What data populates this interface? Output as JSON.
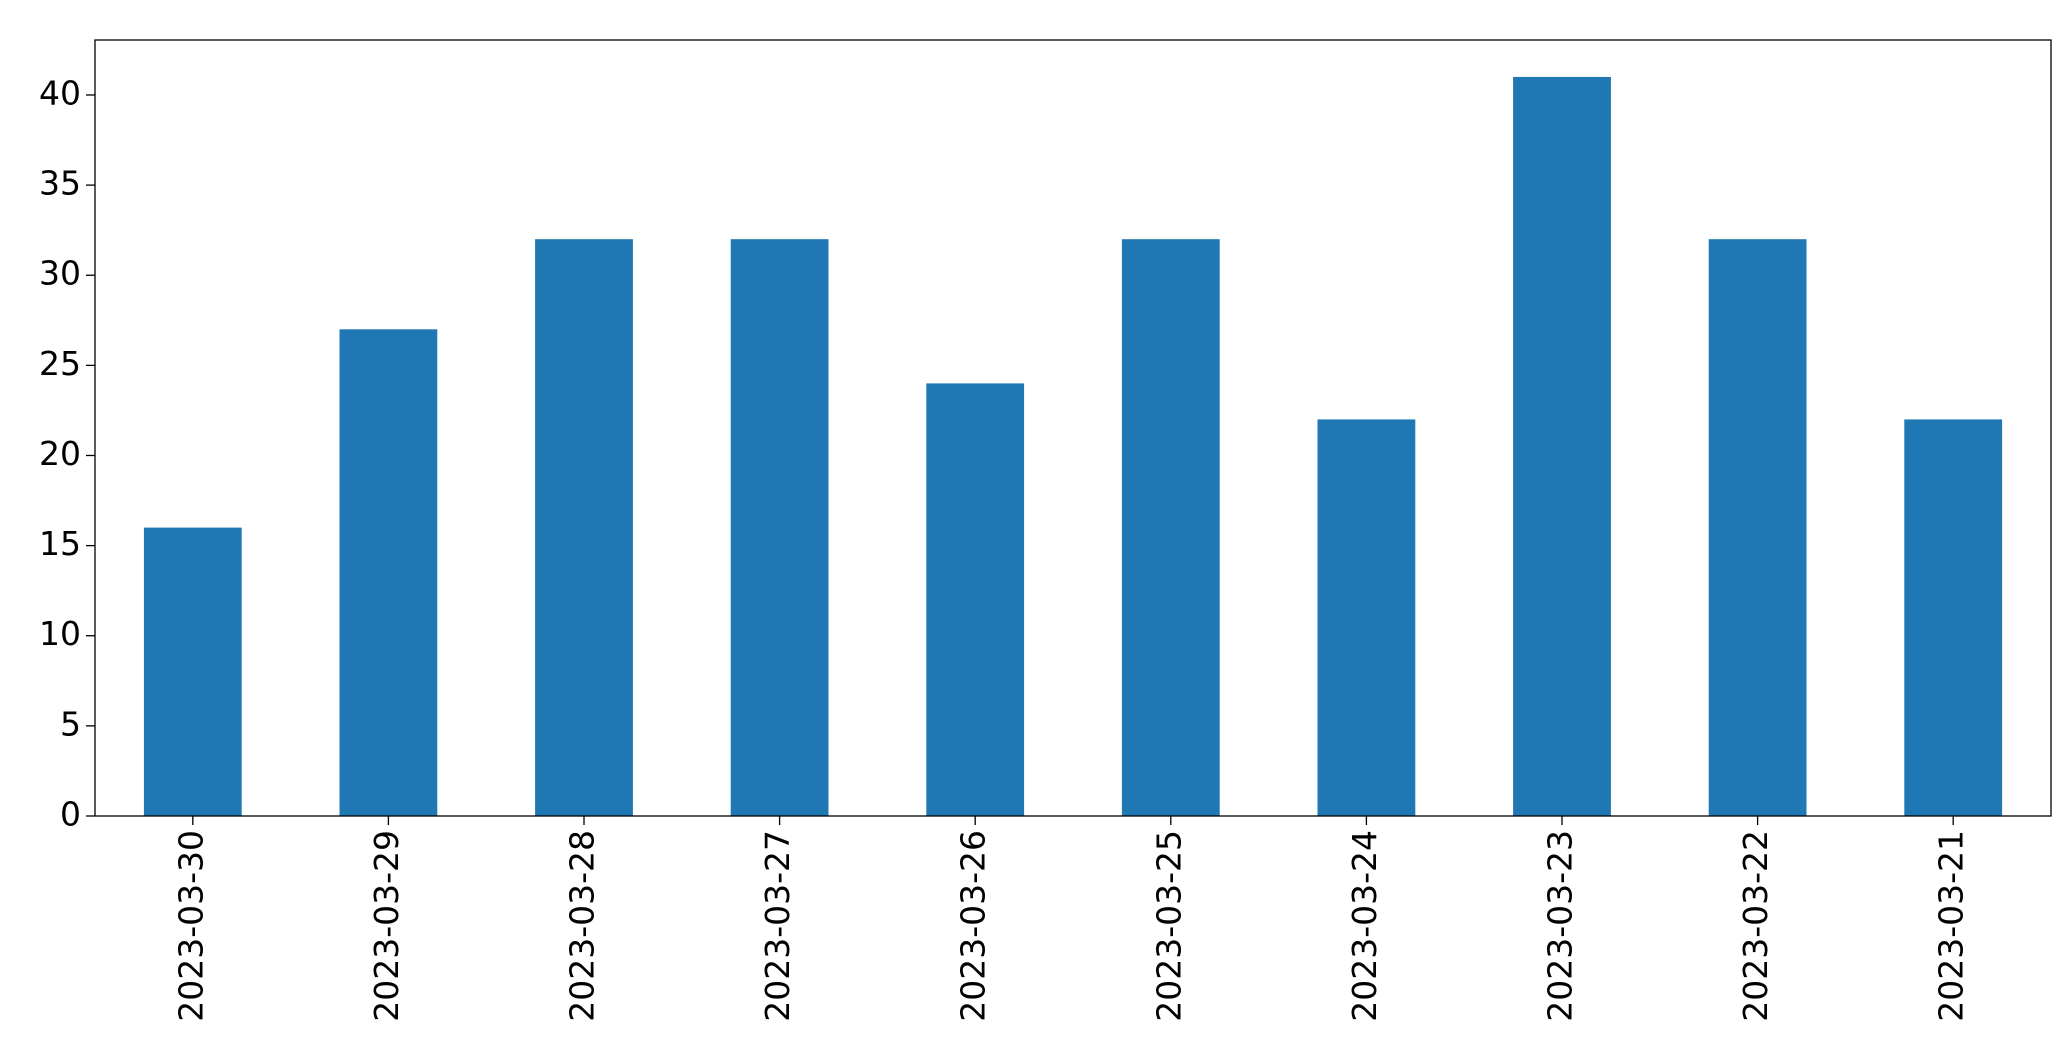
{
  "chart_data": {
    "type": "bar",
    "categories": [
      "2023-03-30",
      "2023-03-29",
      "2023-03-28",
      "2023-03-27",
      "2023-03-26",
      "2023-03-25",
      "2023-03-24",
      "2023-03-23",
      "2023-03-22",
      "2023-03-21"
    ],
    "values": [
      16,
      27,
      32,
      32,
      24,
      32,
      22,
      41,
      32,
      22
    ],
    "color": "#1f77b4",
    "ylim": [
      0,
      43.05
    ],
    "yticks": [
      0,
      5,
      10,
      15,
      20,
      25,
      30,
      35,
      40
    ],
    "grid": false
  }
}
